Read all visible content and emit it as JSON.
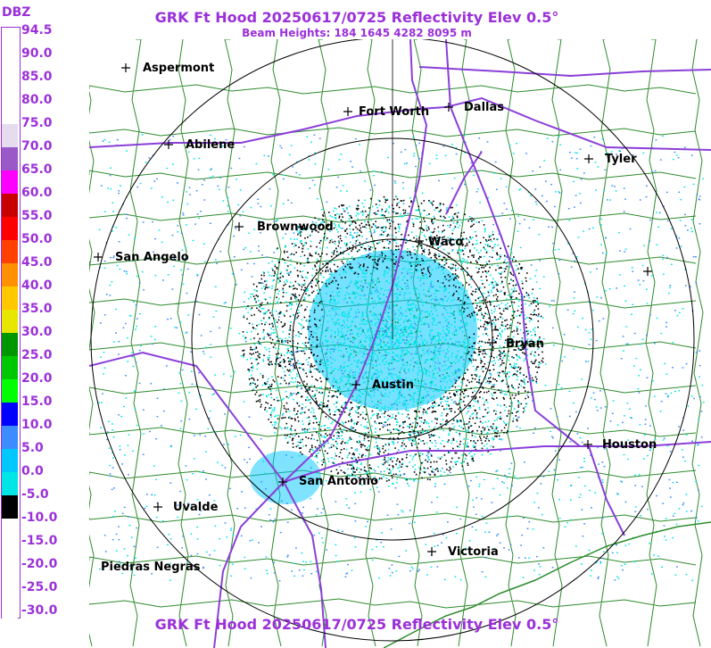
{
  "title": "GRK Ft Hood 20250617/0725 Reflectivity Elev 0.5°",
  "beam_heights": "Beam Heights: 184 1645 4282 8095 m",
  "legend": {
    "unit": "DBZ",
    "labels": [
      "94.5",
      "90.0",
      "85.0",
      "80.0",
      "75.0",
      "70.0",
      "65.0",
      "60.0",
      "55.0",
      "50.0",
      "45.0",
      "40.0",
      "35.0",
      "30.0",
      "25.0",
      "20.0",
      "15.0",
      "10.0",
      "5.0",
      "0.0",
      "-5.0",
      "-10.0",
      "-15.0",
      "-20.0",
      "-25.0",
      "-30.0"
    ],
    "colors": [
      "#ffffff",
      "#ffffff",
      "#ffffff",
      "#ffffff",
      "#e6dcf0",
      "#9b59c8",
      "#ff00ff",
      "#c80000",
      "#ff0000",
      "#ff4000",
      "#ff9000",
      "#ffc800",
      "#e6e600",
      "#009600",
      "#00c800",
      "#00ff00",
      "#0000ff",
      "#3c8cff",
      "#00c8ff",
      "#00e6e6",
      "#000000",
      "#ffffff",
      "#ffffff",
      "#ffffff",
      "#ffffff",
      "#ffffff"
    ]
  },
  "cities": [
    {
      "name": "Aspermont"
    },
    {
      "name": "Fort Worth"
    },
    {
      "name": "Dallas"
    },
    {
      "name": "Abilene"
    },
    {
      "name": "Tyler"
    },
    {
      "name": "Brownwood"
    },
    {
      "name": "Waco"
    },
    {
      "name": "San Angelo"
    },
    {
      "name": "Bryan"
    },
    {
      "name": "Austin"
    },
    {
      "name": "Houston"
    },
    {
      "name": "San Antonio"
    },
    {
      "name": "Uvalde"
    },
    {
      "name": "Victoria"
    },
    {
      "name": "Piedras Negras"
    }
  ],
  "colors": {
    "title": "#9b30d9",
    "county_lines": "#2e8b2e",
    "highways": "#8a3fd8",
    "range_rings": "#000000",
    "echo_main": "#00c8ff",
    "echo_light": "#00e6e6"
  }
}
